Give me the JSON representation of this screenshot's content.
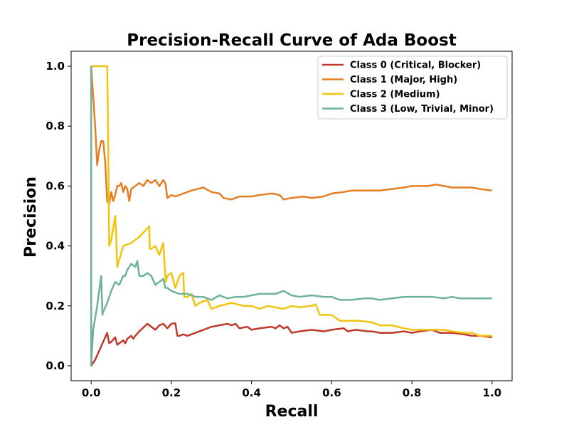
{
  "chart_data": {
    "type": "line",
    "title": "Precision-Recall Curve of Ada Boost",
    "xlabel": "Recall",
    "ylabel": "Precision",
    "xlim": [
      -0.05,
      1.05
    ],
    "ylim": [
      -0.05,
      1.05
    ],
    "xticks": [
      0.0,
      0.2,
      0.4,
      0.6,
      0.8,
      1.0
    ],
    "xtick_labels": [
      "0.0",
      "0.2",
      "0.4",
      "0.6",
      "0.8",
      "1.0"
    ],
    "yticks": [
      0.0,
      0.2,
      0.4,
      0.6,
      0.8,
      1.0
    ],
    "ytick_labels": [
      "0.0",
      "0.2",
      "0.4",
      "0.6",
      "0.8",
      "1.0"
    ],
    "grid": false,
    "legend_position": "top-right",
    "series": [
      {
        "name": "Class 0 (Critical, Blocker)",
        "color": "#c0392b",
        "x": [
          0.0,
          0.01,
          0.02,
          0.03,
          0.035,
          0.04,
          0.045,
          0.05,
          0.06,
          0.065,
          0.07,
          0.08,
          0.085,
          0.09,
          0.1,
          0.105,
          0.11,
          0.12,
          0.14,
          0.16,
          0.17,
          0.18,
          0.19,
          0.2,
          0.21,
          0.215,
          0.22,
          0.23,
          0.24,
          0.25,
          0.27,
          0.3,
          0.32,
          0.34,
          0.35,
          0.36,
          0.37,
          0.39,
          0.4,
          0.42,
          0.45,
          0.46,
          0.47,
          0.48,
          0.49,
          0.5,
          0.52,
          0.55,
          0.58,
          0.6,
          0.63,
          0.64,
          0.66,
          0.69,
          0.7,
          0.72,
          0.75,
          0.78,
          0.8,
          0.82,
          0.85,
          0.87,
          0.9,
          0.93,
          0.95,
          0.97,
          1.0
        ],
        "y": [
          0.0,
          0.02,
          0.05,
          0.08,
          0.095,
          0.11,
          0.075,
          0.08,
          0.095,
          0.07,
          0.075,
          0.085,
          0.075,
          0.09,
          0.1,
          0.09,
          0.1,
          0.115,
          0.14,
          0.12,
          0.135,
          0.14,
          0.125,
          0.14,
          0.142,
          0.1,
          0.1,
          0.105,
          0.1,
          0.105,
          0.115,
          0.13,
          0.135,
          0.14,
          0.135,
          0.14,
          0.125,
          0.13,
          0.12,
          0.125,
          0.13,
          0.125,
          0.135,
          0.125,
          0.13,
          0.11,
          0.115,
          0.12,
          0.115,
          0.12,
          0.125,
          0.115,
          0.12,
          0.115,
          0.115,
          0.11,
          0.11,
          0.115,
          0.11,
          0.115,
          0.12,
          0.11,
          0.11,
          0.105,
          0.1,
          0.1,
          0.095
        ]
      },
      {
        "name": "Class 1 (Major, High)",
        "color": "#e67e22",
        "x": [
          0.0,
          0.005,
          0.01,
          0.015,
          0.02,
          0.025,
          0.03,
          0.035,
          0.04,
          0.045,
          0.05,
          0.055,
          0.06,
          0.065,
          0.07,
          0.075,
          0.08,
          0.085,
          0.09,
          0.095,
          0.1,
          0.11,
          0.12,
          0.13,
          0.14,
          0.15,
          0.16,
          0.17,
          0.18,
          0.185,
          0.19,
          0.2,
          0.21,
          0.22,
          0.25,
          0.28,
          0.3,
          0.32,
          0.33,
          0.35,
          0.37,
          0.4,
          0.42,
          0.45,
          0.47,
          0.48,
          0.5,
          0.53,
          0.55,
          0.58,
          0.6,
          0.63,
          0.65,
          0.67,
          0.7,
          0.72,
          0.75,
          0.78,
          0.8,
          0.82,
          0.84,
          0.86,
          0.88,
          0.9,
          0.93,
          0.95,
          0.97,
          1.0
        ],
        "y": [
          1.0,
          0.9,
          0.8,
          0.67,
          0.72,
          0.75,
          0.75,
          0.68,
          0.55,
          0.54,
          0.58,
          0.55,
          0.57,
          0.6,
          0.6,
          0.61,
          0.58,
          0.6,
          0.59,
          0.55,
          0.59,
          0.6,
          0.61,
          0.6,
          0.62,
          0.61,
          0.62,
          0.6,
          0.62,
          0.61,
          0.56,
          0.57,
          0.565,
          0.57,
          0.585,
          0.595,
          0.58,
          0.575,
          0.56,
          0.555,
          0.565,
          0.565,
          0.57,
          0.575,
          0.57,
          0.555,
          0.56,
          0.565,
          0.56,
          0.565,
          0.575,
          0.58,
          0.585,
          0.585,
          0.585,
          0.585,
          0.59,
          0.595,
          0.6,
          0.6,
          0.6,
          0.605,
          0.6,
          0.595,
          0.595,
          0.595,
          0.59,
          0.585
        ]
      },
      {
        "name": "Class 2 (Medium)",
        "color": "#f1c40f",
        "x": [
          0.0,
          0.0,
          0.04,
          0.042,
          0.045,
          0.05,
          0.06,
          0.062,
          0.065,
          0.08,
          0.1,
          0.12,
          0.145,
          0.146,
          0.15,
          0.16,
          0.17,
          0.18,
          0.185,
          0.186,
          0.19,
          0.2,
          0.21,
          0.22,
          0.23,
          0.232,
          0.24,
          0.25,
          0.26,
          0.27,
          0.29,
          0.3,
          0.32,
          0.35,
          0.38,
          0.4,
          0.42,
          0.44,
          0.46,
          0.48,
          0.5,
          0.52,
          0.55,
          0.56,
          0.57,
          0.6,
          0.62,
          0.65,
          0.67,
          0.7,
          0.72,
          0.75,
          0.78,
          0.8,
          0.82,
          0.85,
          0.88,
          0.9,
          0.93,
          0.95,
          0.97,
          1.0
        ],
        "y": [
          0.0,
          1.0,
          1.0,
          0.8,
          0.4,
          0.42,
          0.5,
          0.45,
          0.33,
          0.4,
          0.41,
          0.43,
          0.465,
          0.39,
          0.39,
          0.4,
          0.37,
          0.41,
          0.3,
          0.28,
          0.3,
          0.31,
          0.26,
          0.3,
          0.31,
          0.23,
          0.23,
          0.24,
          0.2,
          0.21,
          0.22,
          0.19,
          0.2,
          0.21,
          0.2,
          0.2,
          0.19,
          0.2,
          0.195,
          0.19,
          0.2,
          0.195,
          0.2,
          0.205,
          0.17,
          0.17,
          0.15,
          0.15,
          0.15,
          0.145,
          0.135,
          0.135,
          0.125,
          0.12,
          0.12,
          0.12,
          0.12,
          0.115,
          0.11,
          0.11,
          0.1,
          0.1
        ]
      },
      {
        "name": "Class 3 (Low, Trivial, Minor)",
        "color": "#6fb29a",
        "x": [
          0.0,
          0.0,
          0.005,
          0.01,
          0.015,
          0.02,
          0.025,
          0.028,
          0.03,
          0.04,
          0.05,
          0.06,
          0.07,
          0.08,
          0.085,
          0.09,
          0.1,
          0.11,
          0.115,
          0.12,
          0.13,
          0.14,
          0.15,
          0.16,
          0.17,
          0.18,
          0.185,
          0.19,
          0.2,
          0.22,
          0.24,
          0.26,
          0.28,
          0.3,
          0.32,
          0.34,
          0.36,
          0.38,
          0.4,
          0.42,
          0.44,
          0.46,
          0.48,
          0.5,
          0.52,
          0.55,
          0.58,
          0.6,
          0.62,
          0.65,
          0.68,
          0.7,
          0.72,
          0.75,
          0.78,
          0.8,
          0.82,
          0.85,
          0.88,
          0.9,
          0.92,
          0.95,
          0.97,
          1.0
        ],
        "y": [
          1.0,
          0.0,
          0.12,
          0.16,
          0.2,
          0.25,
          0.3,
          0.17,
          0.18,
          0.21,
          0.25,
          0.28,
          0.27,
          0.3,
          0.3,
          0.32,
          0.34,
          0.33,
          0.35,
          0.3,
          0.3,
          0.31,
          0.3,
          0.27,
          0.28,
          0.29,
          0.26,
          0.26,
          0.25,
          0.24,
          0.24,
          0.23,
          0.23,
          0.22,
          0.235,
          0.225,
          0.23,
          0.23,
          0.235,
          0.24,
          0.24,
          0.24,
          0.25,
          0.235,
          0.23,
          0.235,
          0.23,
          0.23,
          0.22,
          0.22,
          0.225,
          0.225,
          0.22,
          0.225,
          0.23,
          0.23,
          0.23,
          0.23,
          0.225,
          0.23,
          0.225,
          0.225,
          0.225,
          0.225
        ]
      }
    ]
  }
}
